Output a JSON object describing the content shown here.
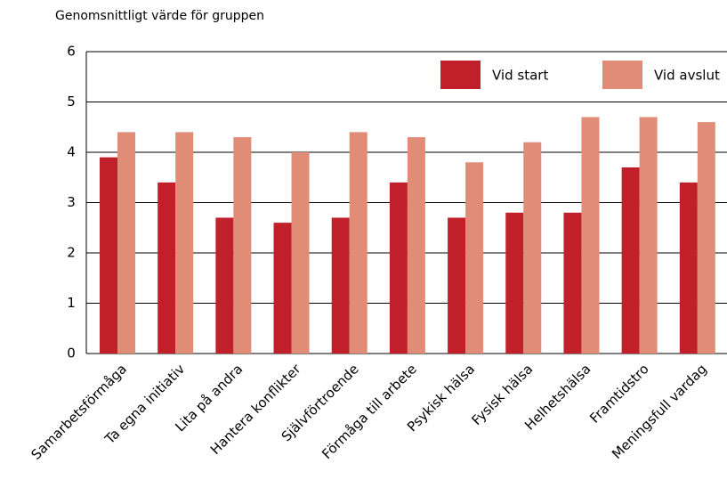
{
  "chart_data": {
    "type": "bar",
    "title": "Genomsnittligt värde för gruppen",
    "categories": [
      "Samarbetsförmåga",
      "Ta egna initiativ",
      "Lita på andra",
      "Hantera konflikter",
      "Självförtroende",
      "Förmåga till arbete",
      "Psykisk hälsa",
      "Fysisk hälsa",
      "Helhetshälsa",
      "Framtidstro",
      "Meningsfull vardag"
    ],
    "series": [
      {
        "name": "Vid start",
        "color": "#c1202b",
        "values": [
          3.9,
          3.4,
          2.7,
          2.6,
          2.7,
          3.4,
          2.7,
          2.8,
          2.8,
          3.7,
          3.4
        ]
      },
      {
        "name": "Vid avslut",
        "color": "#e08c77",
        "values": [
          4.4,
          4.4,
          4.3,
          4.0,
          4.4,
          4.3,
          3.8,
          4.2,
          4.7,
          4.7,
          4.6
        ]
      }
    ],
    "ylim": [
      0,
      6
    ],
    "yticks": [
      0,
      1,
      2,
      3,
      4,
      5,
      6
    ],
    "grid": true,
    "legend": "top-right"
  }
}
